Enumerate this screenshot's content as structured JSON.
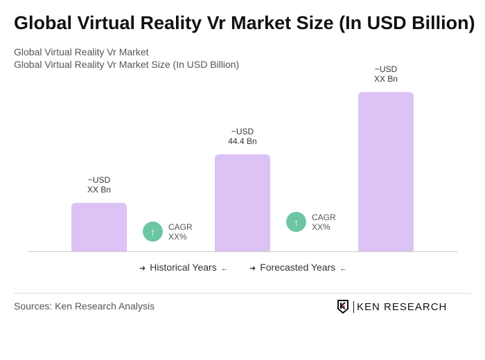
{
  "title": "Global Virtual Reality Vr Market Size (In USD Billion)",
  "subtitle1": "Global Virtual Reality Vr Market",
  "subtitle2": "Global Virtual Reality Vr Market Size (In USD Billion)",
  "chart_data": {
    "type": "bar",
    "categories": [
      "",
      "",
      ""
    ],
    "values": [
      null,
      44.4,
      null
    ],
    "labels": [
      {
        "l1": "~USD",
        "l2": "XX Bn"
      },
      {
        "l1": "~USD",
        "l2": "44.4 Bn"
      },
      {
        "l1": "~USD",
        "l2": "XX Bn"
      }
    ],
    "cagr": [
      {
        "l1": "CAGR",
        "l2": "XX%"
      },
      {
        "l1": "CAGR",
        "l2": "XX%"
      }
    ],
    "legend": [
      "Historical Years",
      "Forecasted Years"
    ],
    "bar_color": "#dcc2f5",
    "cagr_color": "#6dc6a2"
  },
  "source": "Sources: Ken Research Analysis",
  "logo_text": "KEN RESEARCH"
}
